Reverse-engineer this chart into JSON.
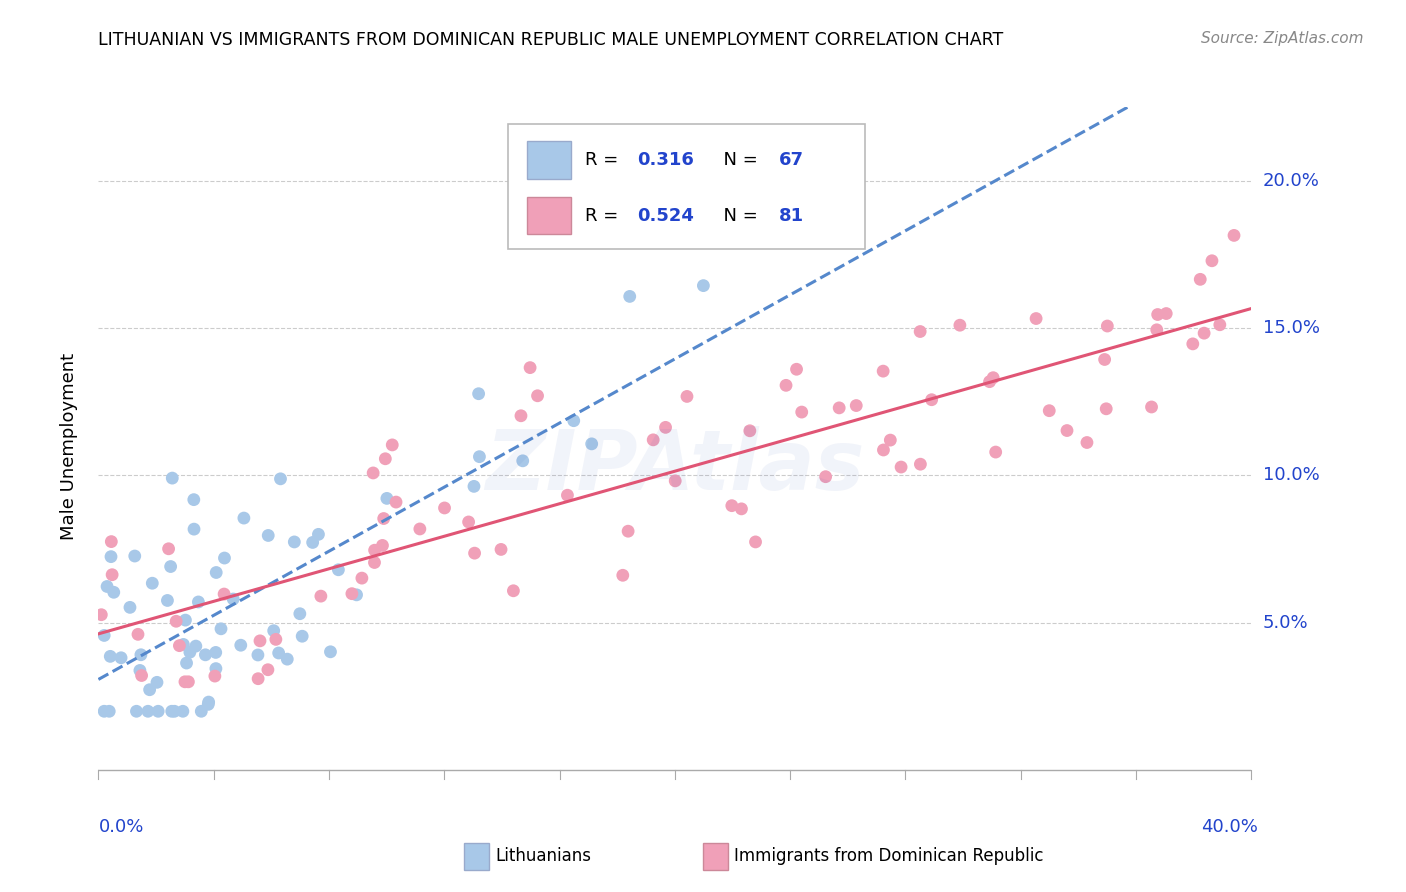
{
  "title": "LITHUANIAN VS IMMIGRANTS FROM DOMINICAN REPUBLIC MALE UNEMPLOYMENT CORRELATION CHART",
  "source": "Source: ZipAtlas.com",
  "ylabel": "Male Unemployment",
  "watermark": "ZIPAtlas",
  "blue_color": "#a8c8e8",
  "pink_color": "#f0a0b8",
  "blue_line_color": "#5588cc",
  "pink_line_color": "#e05575",
  "r_value_color": "#2244cc",
  "xlim": [
    0.0,
    0.4
  ],
  "ylim": [
    -0.005,
    0.225
  ],
  "yticks": [
    0.05,
    0.1,
    0.15,
    0.2
  ],
  "ytick_labels": [
    "5.0%",
    "10.0%",
    "15.0%",
    "20.0%"
  ],
  "blue_intercept": 0.045,
  "blue_slope": 0.21,
  "pink_intercept": 0.07,
  "pink_slope": 0.16,
  "blue_N": 67,
  "pink_N": 81,
  "blue_R": 0.316,
  "pink_R": 0.524
}
